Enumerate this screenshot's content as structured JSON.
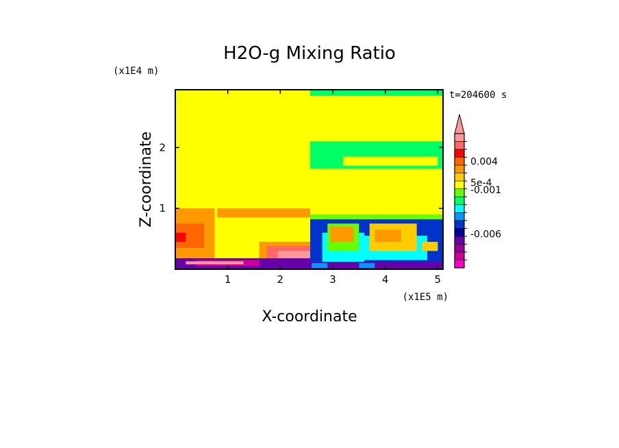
{
  "chart_data": {
    "type": "heatmap",
    "title": "H2O-g Mixing Ratio",
    "xlabel": "X-coordinate",
    "ylabel": "Z-coordinate",
    "x_multiplier": "(x1E5 m)",
    "y_multiplier": "(x1E4 m)",
    "time_label": "t=204600 s",
    "xlim": [
      0,
      5.1
    ],
    "ylim": [
      0,
      2.95
    ],
    "x_ticks": [
      {
        "value": 1,
        "label": "1"
      },
      {
        "value": 2,
        "label": "2"
      },
      {
        "value": 3,
        "label": "3"
      },
      {
        "value": 4,
        "label": "4"
      },
      {
        "value": 5,
        "label": "5"
      }
    ],
    "y_ticks": [
      {
        "value": 1,
        "label": "1"
      },
      {
        "value": 2,
        "label": "2"
      }
    ],
    "colorbar": {
      "colors": [
        "#ff00cc",
        "#cc0099",
        "#990099",
        "#6600aa",
        "#000099",
        "#0033cc",
        "#0099ff",
        "#00ffff",
        "#00ff66",
        "#66ff00",
        "#ffff00",
        "#ffcc00",
        "#ff9900",
        "#ff6600",
        "#ff0000",
        "#ff6666",
        "#ff9999"
      ],
      "tick_labels": [
        {
          "label": "0.004",
          "level": 13.5
        },
        {
          "label": "5e-4",
          "level": 10.8
        },
        {
          "label": "-0.001",
          "level": 9.9
        },
        {
          "label": "-0.006",
          "level": 4.3
        }
      ]
    },
    "regions": [
      {
        "c": 10,
        "x": [
          0,
          2.57
        ],
        "y": [
          0.18,
          2.95
        ]
      },
      {
        "c": 12,
        "x": [
          0,
          0.75
        ],
        "y": [
          0.18,
          1.0
        ]
      },
      {
        "c": 12,
        "x": [
          0.8,
          2.57
        ],
        "y": [
          0.85,
          1.0
        ]
      },
      {
        "c": 13,
        "x": [
          0,
          0.55
        ],
        "y": [
          0.35,
          0.75
        ]
      },
      {
        "c": 14,
        "x": [
          0,
          0.2
        ],
        "y": [
          0.45,
          0.6
        ]
      },
      {
        "c": 12,
        "x": [
          1.6,
          2.57
        ],
        "y": [
          0.18,
          0.45
        ]
      },
      {
        "c": 15,
        "x": [
          1.75,
          2.57
        ],
        "y": [
          0.18,
          0.38
        ]
      },
      {
        "c": 16,
        "x": [
          1.95,
          2.57
        ],
        "y": [
          0.18,
          0.3
        ]
      },
      {
        "c": 3,
        "x": [
          0,
          2.57
        ],
        "y": [
          0,
          0.18
        ]
      },
      {
        "c": 1,
        "x": [
          0.4,
          1.6
        ],
        "y": [
          0.05,
          0.15
        ]
      },
      {
        "c": 16,
        "x": [
          0.2,
          1.3
        ],
        "y": [
          0.08,
          0.13
        ]
      },
      {
        "c": 8,
        "x": [
          2.57,
          5.1
        ],
        "y": [
          1.2,
          2.95
        ]
      },
      {
        "c": 10,
        "x": [
          2.57,
          5.1
        ],
        "y": [
          2.1,
          2.85
        ]
      },
      {
        "c": 8,
        "x": [
          2.7,
          5.1
        ],
        "y": [
          1.95,
          2.05
        ]
      },
      {
        "c": 10,
        "x": [
          2.57,
          5.1
        ],
        "y": [
          0.82,
          1.65
        ]
      },
      {
        "c": 10,
        "x": [
          3.2,
          5.0
        ],
        "y": [
          1.7,
          1.85
        ]
      },
      {
        "c": 9,
        "x": [
          2.57,
          5.1
        ],
        "y": [
          0.82,
          0.9
        ]
      },
      {
        "c": 5,
        "x": [
          2.57,
          5.1
        ],
        "y": [
          0,
          0.82
        ]
      },
      {
        "c": 7,
        "x": [
          2.8,
          3.6
        ],
        "y": [
          0.1,
          0.6
        ]
      },
      {
        "c": 9,
        "x": [
          2.9,
          3.5
        ],
        "y": [
          0.3,
          0.75
        ]
      },
      {
        "c": 12,
        "x": [
          2.95,
          3.4
        ],
        "y": [
          0.45,
          0.7
        ]
      },
      {
        "c": 7,
        "x": [
          3.6,
          4.8
        ],
        "y": [
          0.15,
          0.55
        ]
      },
      {
        "c": 11,
        "x": [
          3.7,
          4.6
        ],
        "y": [
          0.3,
          0.75
        ]
      },
      {
        "c": 12,
        "x": [
          3.8,
          4.3
        ],
        "y": [
          0.45,
          0.65
        ]
      },
      {
        "c": 3,
        "x": [
          2.57,
          5.1
        ],
        "y": [
          0,
          0.12
        ]
      },
      {
        "c": 6,
        "x": [
          2.6,
          2.9
        ],
        "y": [
          0.02,
          0.1
        ]
      },
      {
        "c": 6,
        "x": [
          3.5,
          3.8
        ],
        "y": [
          0.02,
          0.1
        ]
      },
      {
        "c": 11,
        "x": [
          4.7,
          5.0
        ],
        "y": [
          0.3,
          0.45
        ]
      }
    ]
  }
}
